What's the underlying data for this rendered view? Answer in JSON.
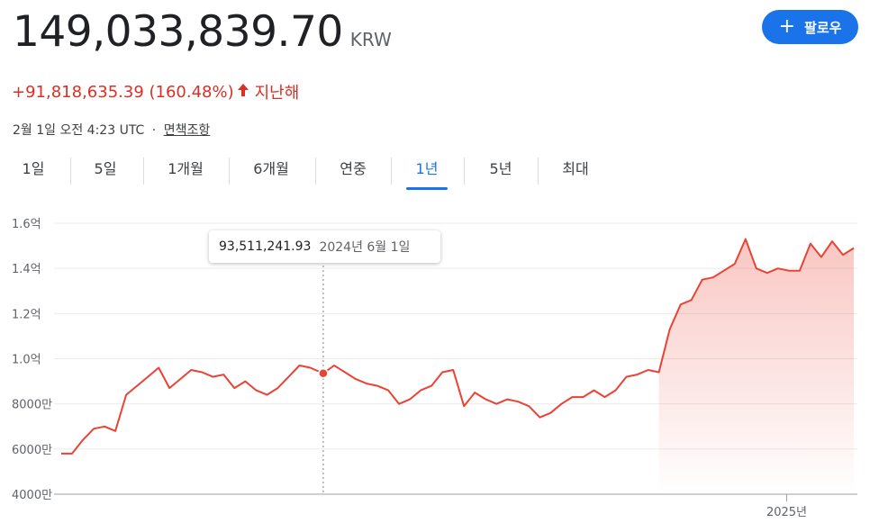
{
  "header": {
    "price": "149,033,839.70",
    "currency": "KRW",
    "change": "+91,818,635.39 (160.48%)",
    "change_arrow": "🡑",
    "change_period": "지난해",
    "timestamp": "2월 1일 오전 4:23 UTC",
    "separator": "·",
    "disclaimer": "면책조항"
  },
  "follow_button": {
    "icon": "plus-icon",
    "plus": "+",
    "label": "팔로우"
  },
  "tabs": [
    {
      "label": "1일"
    },
    {
      "label": "5일"
    },
    {
      "label": "1개월"
    },
    {
      "label": "6개월"
    },
    {
      "label": "연중"
    },
    {
      "label": "1년",
      "active": true
    },
    {
      "label": "5년"
    },
    {
      "label": "최대"
    }
  ],
  "colors": {
    "accent": "#1a73e8",
    "line": "#ea4335",
    "negative_text": "#d93025"
  },
  "tooltip": {
    "value": "93,511,241.93",
    "date": "2024년 6월 1일"
  },
  "chart_data": {
    "type": "line",
    "xlabel": "",
    "ylabel": "",
    "y_unit": "KRW",
    "ylim": [
      40000000,
      160000000
    ],
    "y_ticks": [
      40000000,
      60000000,
      80000000,
      100000000,
      120000000,
      140000000,
      160000000
    ],
    "y_tick_labels": [
      "4000만",
      "6000만",
      "8000만",
      "1.0억",
      "1.2억",
      "1.4억",
      "1.6억"
    ],
    "x_tick_labels": [
      {
        "label": "2025년",
        "date": "2025-01-01"
      }
    ],
    "x_range": [
      "2024-02-01",
      "2025-02-01"
    ],
    "grid": true,
    "highlight_point": {
      "date": "2024-06-01",
      "value": 93511241.93
    },
    "series": [
      {
        "x": [
          "2024-02-01",
          "2024-02-06",
          "2024-02-11",
          "2024-02-16",
          "2024-02-21",
          "2024-02-26",
          "2024-03-02",
          "2024-03-07",
          "2024-03-12",
          "2024-03-17",
          "2024-03-22",
          "2024-03-27",
          "2024-04-01",
          "2024-04-06",
          "2024-04-11",
          "2024-04-16",
          "2024-04-21",
          "2024-04-26",
          "2024-05-01",
          "2024-05-06",
          "2024-05-11",
          "2024-05-16",
          "2024-05-21",
          "2024-05-26",
          "2024-06-01",
          "2024-06-06",
          "2024-06-11",
          "2024-06-16",
          "2024-06-21",
          "2024-06-26",
          "2024-07-01",
          "2024-07-06",
          "2024-07-11",
          "2024-07-16",
          "2024-07-21",
          "2024-07-26",
          "2024-07-31",
          "2024-08-05",
          "2024-08-10",
          "2024-08-15",
          "2024-08-20",
          "2024-08-25",
          "2024-08-30",
          "2024-09-04",
          "2024-09-09",
          "2024-09-14",
          "2024-09-19",
          "2024-09-24",
          "2024-09-29",
          "2024-10-04",
          "2024-10-09",
          "2024-10-14",
          "2024-10-19",
          "2024-10-24",
          "2024-10-29",
          "2024-11-03",
          "2024-11-08",
          "2024-11-13",
          "2024-11-18",
          "2024-11-23",
          "2024-11-28",
          "2024-12-03",
          "2024-12-08",
          "2024-12-13",
          "2024-12-18",
          "2024-12-23",
          "2024-12-28",
          "2025-01-02",
          "2025-01-07",
          "2025-01-12",
          "2025-01-17",
          "2025-01-22",
          "2025-01-27",
          "2025-02-01"
        ],
        "values": [
          58000000,
          58000000,
          64000000,
          69000000,
          70000000,
          68000000,
          84000000,
          88000000,
          92000000,
          96000000,
          87000000,
          91000000,
          95000000,
          94000000,
          92000000,
          93000000,
          87000000,
          90000000,
          86000000,
          84000000,
          87000000,
          92000000,
          97000000,
          96000000,
          93500000,
          97000000,
          94000000,
          91000000,
          89000000,
          88000000,
          86000000,
          80000000,
          82000000,
          86000000,
          88000000,
          94000000,
          95000000,
          79000000,
          85000000,
          82000000,
          80000000,
          82000000,
          81000000,
          79000000,
          74000000,
          76000000,
          80000000,
          83000000,
          83000000,
          86000000,
          83000000,
          86000000,
          92000000,
          93000000,
          95000000,
          94000000,
          113000000,
          124000000,
          126000000,
          135000000,
          136000000,
          139000000,
          142000000,
          153000000,
          140000000,
          138000000,
          140000000,
          139000000,
          139000000,
          151000000,
          145000000,
          152000000,
          146000000,
          149000000
        ]
      }
    ]
  }
}
